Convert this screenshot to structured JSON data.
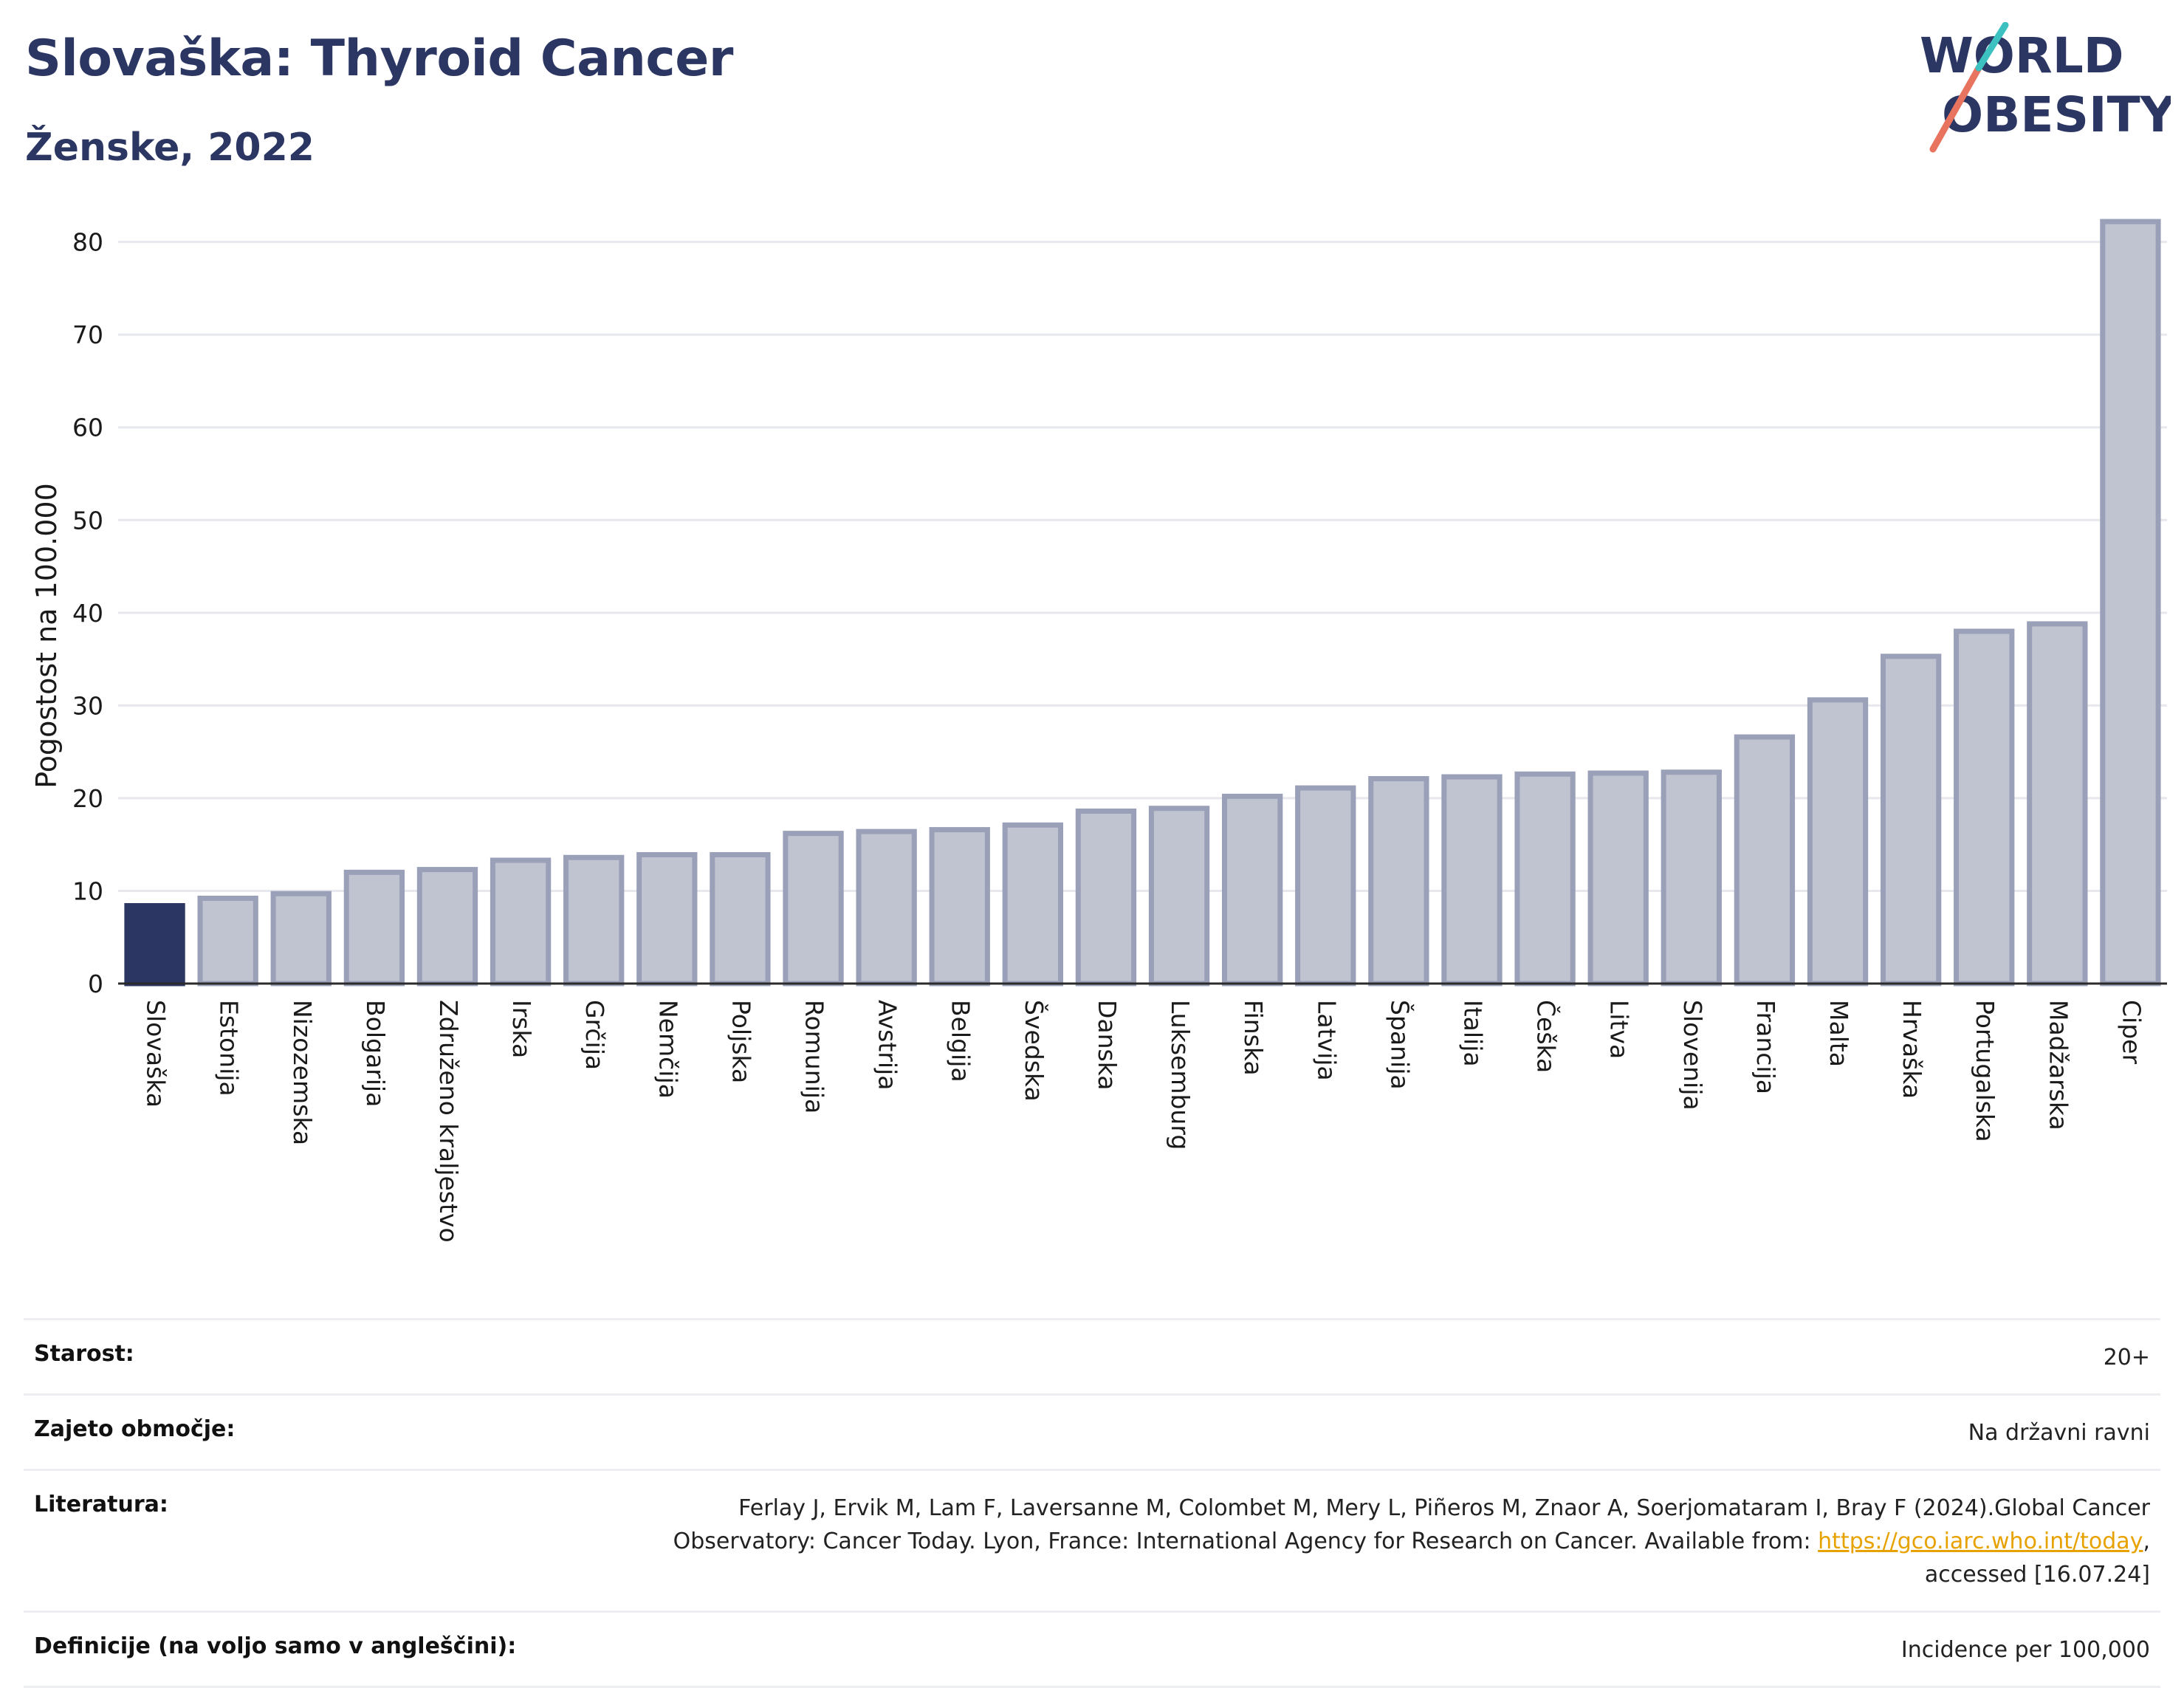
{
  "header": {
    "title": "Slovaška: Thyroid Cancer",
    "subtitle": "Ženske, 2022"
  },
  "logo": {
    "line1": "WORLD",
    "line2": "OBESITY"
  },
  "colors": {
    "highlight": "#2b3663",
    "bar_fill": "#c0c3d0",
    "bar_stroke": "#9aa0b8",
    "title": "#2b3663",
    "grid": "#e6e8ee",
    "link": "#e8a200"
  },
  "chart_data": {
    "type": "bar",
    "title": "Slovaška: Thyroid Cancer",
    "ylabel": "Pogostost na 100.000",
    "xlabel": "",
    "ylim": [
      0,
      83
    ],
    "yticks": [
      0,
      10,
      20,
      30,
      40,
      50,
      60,
      70,
      80
    ],
    "grid": true,
    "highlight_category": "Slovaška",
    "categories": [
      "Slovaška",
      "Estonija",
      "Nizozemska",
      "Bolgarija",
      "Združeno kraljestvo",
      "Irska",
      "Grčija",
      "Nemčija",
      "Poljska",
      "Romunija",
      "Avstrija",
      "Belgija",
      "Švedska",
      "Danska",
      "Luksemburg",
      "Finska",
      "Latvija",
      "Španija",
      "Italija",
      "Češka",
      "Litva",
      "Slovenija",
      "Francija",
      "Malta",
      "Hrvaška",
      "Portugalska",
      "Madžarska",
      "Ciper"
    ],
    "values": [
      8.4,
      9.2,
      9.7,
      12.0,
      12.3,
      13.3,
      13.6,
      13.9,
      13.9,
      16.2,
      16.4,
      16.6,
      17.1,
      18.6,
      18.9,
      20.2,
      21.1,
      22.1,
      22.3,
      22.6,
      22.7,
      22.8,
      26.6,
      30.6,
      35.3,
      38.0,
      38.8,
      82.2
    ]
  },
  "info": {
    "rows": [
      {
        "label": "Starost:",
        "value": "20+"
      },
      {
        "label": "Zajeto območje:",
        "value": "Na državni ravni"
      },
      {
        "label": "Literatura:",
        "value_pre": "Ferlay J, Ervik M, Lam F, Laversanne M, Colombet M, Mery L, Piñeros M, Znaor A, Soerjomataram I, Bray F (2024).Global Cancer Observatory: Cancer Today. Lyon, France: International Agency for Research on Cancer. Available from: ",
        "link": "https://gco.iarc.who.int/today",
        "value_post": ", accessed [16.07.24]"
      },
      {
        "label": "Definicije (na voljo samo v angleščini):",
        "value": "Incidence per 100,000"
      }
    ]
  }
}
